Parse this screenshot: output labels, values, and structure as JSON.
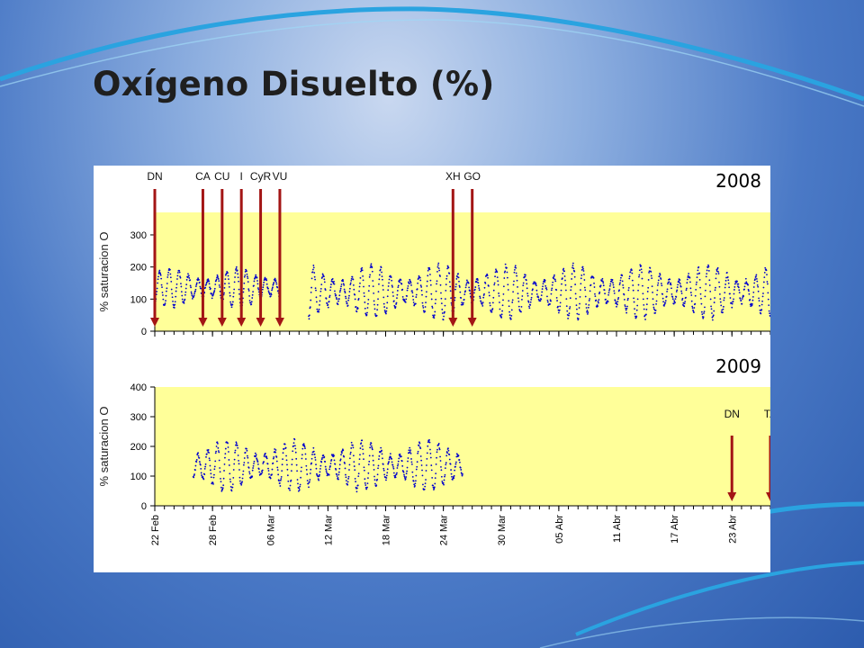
{
  "title": "Oxígeno Disuelto (%)",
  "colors": {
    "plot_background": "#ffff99",
    "series": "#0000cc",
    "arrow": "#a31515"
  },
  "chart_data": [
    {
      "type": "scatter",
      "year_label": "2008",
      "ylabel": "% saturacion O",
      "ylim": [
        0,
        370
      ],
      "yticks": [
        0,
        100,
        200,
        300
      ],
      "xlim": [
        "22 Feb",
        "27 Abr"
      ],
      "xticks": [
        "22 Feb",
        "28 Feb",
        "06 Mar",
        "12 Mar",
        "18 Mar",
        "24 Mar",
        "30 Mar",
        "05 Abr",
        "11 Abr",
        "17 Abr",
        "23 Abr"
      ],
      "grid": false,
      "series": [
        {
          "x_range": [
            "22 Feb",
            "07 Mar"
          ],
          "y_min": 75,
          "y_max": 195,
          "pattern": "daily cycle"
        },
        {
          "x_range": [
            "10 Mar",
            "28 Abr"
          ],
          "y_min": 40,
          "y_max": 205,
          "pattern": "daily cycle"
        }
      ],
      "annotations": [
        {
          "label": "DN",
          "date": "22 Feb"
        },
        {
          "label": "CA",
          "date": "27 Feb"
        },
        {
          "label": "CU",
          "date": "01 Mar"
        },
        {
          "label": "I",
          "date": "03 Mar"
        },
        {
          "label": "CyR",
          "date": "05 Mar"
        },
        {
          "label": "VU",
          "date": "07 Mar"
        },
        {
          "label": "XH",
          "date": "25 Mar"
        },
        {
          "label": "GO",
          "date": "27 Mar"
        }
      ]
    },
    {
      "type": "scatter",
      "year_label": "2009",
      "ylabel": "% saturacion O",
      "ylim": [
        0,
        400
      ],
      "yticks": [
        0,
        100,
        200,
        300,
        400
      ],
      "xlim": [
        "22 Feb",
        "27 Abr"
      ],
      "xticks": [
        "22 Feb",
        "28 Feb",
        "06 Mar",
        "12 Mar",
        "18 Mar",
        "24 Mar",
        "30 Mar",
        "05 Abr",
        "11 Abr",
        "17 Abr",
        "23 Abr"
      ],
      "grid": false,
      "series": [
        {
          "x_range": [
            "26 Feb",
            "26 Mar"
          ],
          "y_min": 50,
          "y_max": 220,
          "pattern": "daily cycle"
        }
      ],
      "annotations": [
        {
          "label": "DN",
          "date": "23 Abr"
        },
        {
          "label": "TA",
          "date": "27 Abr"
        }
      ]
    }
  ]
}
